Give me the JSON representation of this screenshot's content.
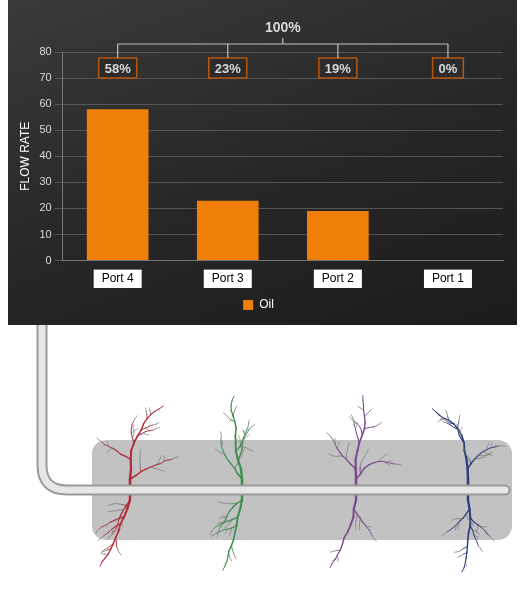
{
  "chart_data": {
    "type": "bar",
    "annotation": "100%",
    "categories": [
      "Port 4",
      "Port 3",
      "Port 2",
      "Port 1"
    ],
    "series": [
      {
        "name": "Oil",
        "color": "#f07f09",
        "values": [
          58,
          23,
          19,
          0
        ],
        "value_labels": [
          "58%",
          "23%",
          "19%",
          "0%"
        ]
      }
    ],
    "y_label": "FLOW RATE",
    "ylim": [
      0,
      80
    ],
    "yticks": [
      0,
      10,
      20,
      30,
      40,
      50,
      60,
      70,
      80
    ],
    "grid": true,
    "legend": "bottom",
    "data_labels": true
  }
}
